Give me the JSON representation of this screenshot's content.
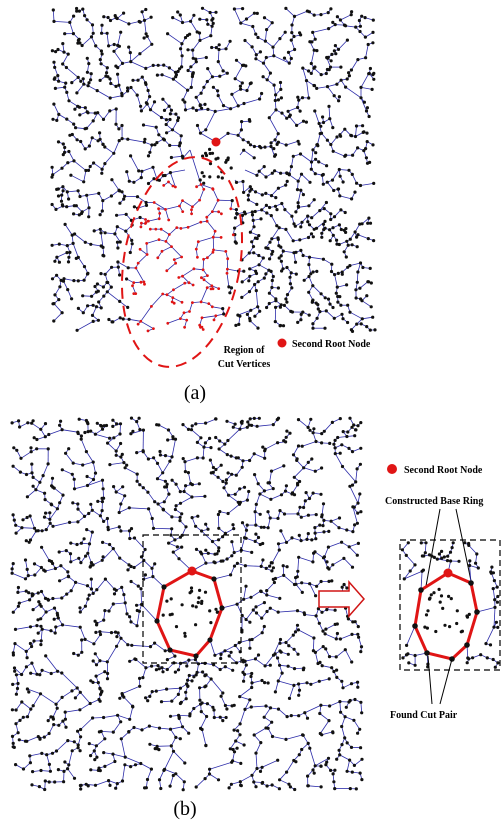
{
  "panel_a": {
    "caption": "(a)",
    "legend_label": "Second Root Node",
    "region_label_line1": "Region of",
    "region_label_line2": "Cut Vertices"
  },
  "panel_b": {
    "caption": "(b)",
    "legend_label": "Second Root Node",
    "base_ring_label": "Constructed Base Ring",
    "cut_pair_label": "Found Cut Pair"
  },
  "colors": {
    "edge": "#2a2aa8",
    "node": "#111111",
    "root": "#e01515",
    "ring": "#e01515",
    "cut_region": "#e01515"
  }
}
